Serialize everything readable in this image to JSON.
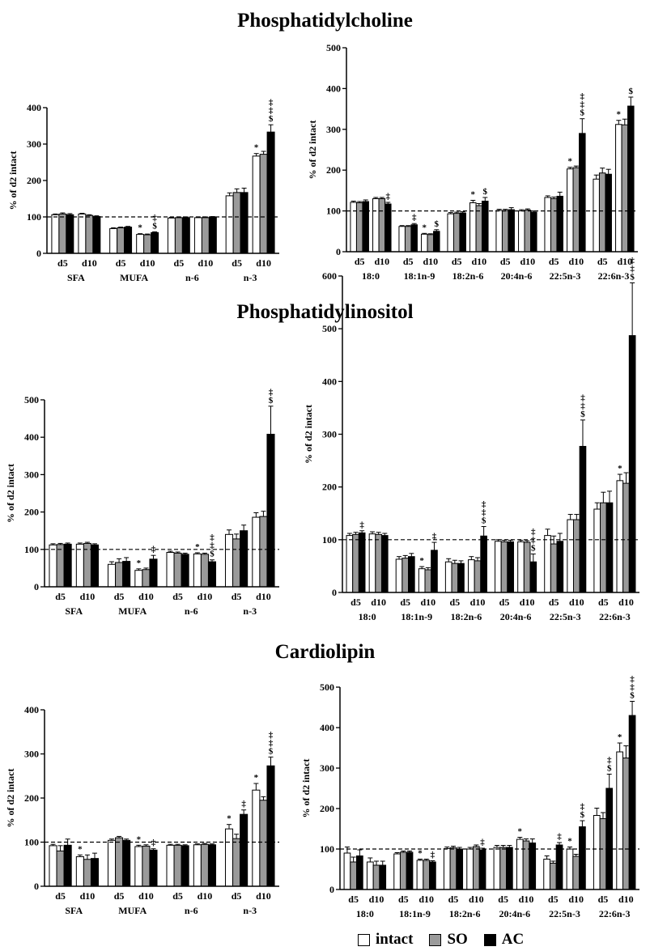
{
  "colors": {
    "intact": "#ffffff",
    "SO": "#9a9a9a",
    "AC": "#000000",
    "stroke": "#000000"
  },
  "sections": [
    {
      "title": "Phosphatidylcholine"
    },
    {
      "title": "Phosphatidylinositol"
    },
    {
      "title": "Cardiolipin"
    }
  ],
  "legend": [
    {
      "label": "intact",
      "color": "#ffffff"
    },
    {
      "label": "SO",
      "color": "#9a9a9a"
    },
    {
      "label": "AC",
      "color": "#000000"
    }
  ],
  "chart_data": [
    {
      "type": "bar",
      "section": "Phosphatidylcholine",
      "ylabel": "% of d2 intact",
      "ylim": [
        0,
        400
      ],
      "yticks": [
        0,
        100,
        200,
        300,
        400
      ],
      "reference_line": 100,
      "groups": [
        "SFA",
        "MUFA",
        "n-6",
        "n-3"
      ],
      "subgroups": [
        "d5",
        "d10"
      ],
      "series_names": [
        "intact",
        "SO",
        "AC"
      ],
      "values": [
        [
          [
            106,
            108,
            106
          ],
          [
            108,
            104,
            101
          ]
        ],
        [
          [
            68,
            70,
            72
          ],
          [
            52,
            51,
            57
          ]
        ],
        [
          [
            97,
            98,
            98
          ],
          [
            98,
            98,
            99
          ]
        ],
        [
          [
            158,
            167,
            167
          ],
          [
            267,
            272,
            333
          ]
        ]
      ],
      "errors": [
        [
          [
            2,
            3,
            3
          ],
          [
            2,
            2,
            2
          ]
        ],
        [
          [
            2,
            2,
            2
          ],
          [
            2,
            2,
            2
          ]
        ],
        [
          [
            2,
            2,
            2
          ],
          [
            2,
            2,
            2
          ]
        ],
        [
          [
            8,
            10,
            12
          ],
          [
            7,
            8,
            20
          ]
        ]
      ],
      "marks": [
        [
          [
            "",
            "",
            ""
          ],
          [
            "",
            "",
            ""
          ]
        ],
        [
          [
            "",
            "",
            ""
          ],
          [
            "*",
            "",
            "‡\n$"
          ]
        ],
        [
          [
            "",
            "",
            ""
          ],
          [
            "",
            "",
            ""
          ]
        ],
        [
          [
            "",
            "",
            ""
          ],
          [
            "*",
            "",
            "‡\n‡\n$"
          ]
        ]
      ]
    },
    {
      "type": "bar",
      "section": "Phosphatidylcholine",
      "ylabel": "% of d2 intact",
      "ylim": [
        0,
        500
      ],
      "yticks": [
        0,
        100,
        200,
        300,
        400,
        500
      ],
      "reference_line": 100,
      "groups": [
        "18:0",
        "18:1n-9",
        "18:2n-6",
        "20:4n-6",
        "22:5n-3",
        "22:6n-3"
      ],
      "subgroups": [
        "d5",
        "d10"
      ],
      "series_names": [
        "intact",
        "SO",
        "AC"
      ],
      "values": [
        [
          [
            121,
            120,
            123
          ],
          [
            130,
            130,
            117
          ]
        ],
        [
          [
            62,
            62,
            66
          ],
          [
            43,
            42,
            50
          ]
        ],
        [
          [
            93,
            94,
            95
          ],
          [
            120,
            113,
            124
          ]
        ],
        [
          [
            101,
            101,
            103
          ],
          [
            100,
            102,
            97
          ]
        ],
        [
          [
            133,
            130,
            136
          ],
          [
            203,
            206,
            290
          ]
        ],
        [
          [
            178,
            193,
            190
          ],
          [
            312,
            311,
            357
          ]
        ]
      ],
      "errors": [
        [
          [
            3,
            3,
            4
          ],
          [
            3,
            3,
            4
          ]
        ],
        [
          [
            2,
            2,
            3
          ],
          [
            2,
            2,
            4
          ]
        ],
        [
          [
            3,
            3,
            3
          ],
          [
            6,
            5,
            9
          ]
        ],
        [
          [
            3,
            3,
            5
          ],
          [
            3,
            3,
            3
          ]
        ],
        [
          [
            4,
            4,
            10
          ],
          [
            4,
            4,
            36
          ]
        ],
        [
          [
            10,
            12,
            12
          ],
          [
            10,
            14,
            22
          ]
        ]
      ],
      "marks": [
        [
          [
            "",
            "",
            ""
          ],
          [
            "",
            "",
            "‡"
          ]
        ],
        [
          [
            "",
            "",
            "‡"
          ],
          [
            "*",
            "",
            "$"
          ]
        ],
        [
          [
            "",
            "",
            ""
          ],
          [
            "*",
            "",
            "$"
          ]
        ],
        [
          [
            "",
            "",
            ""
          ],
          [
            "",
            "",
            ""
          ]
        ],
        [
          [
            "",
            "",
            ""
          ],
          [
            "*",
            "",
            "‡\n‡\n$"
          ]
        ],
        [
          [
            "",
            "",
            ""
          ],
          [
            "*",
            "",
            "$"
          ]
        ]
      ]
    },
    {
      "type": "bar",
      "section": "Phosphatidylinositol",
      "ylabel": "% of d2 intact",
      "ylim": [
        0,
        500
      ],
      "yticks": [
        0,
        100,
        200,
        300,
        400,
        500
      ],
      "reference_line": 100,
      "groups": [
        "SFA",
        "MUFA",
        "n-6",
        "n-3"
      ],
      "subgroups": [
        "d5",
        "d10"
      ],
      "series_names": [
        "intact",
        "SO",
        "AC"
      ],
      "values": [
        [
          [
            112,
            113,
            114
          ],
          [
            114,
            116,
            112
          ]
        ],
        [
          [
            60,
            65,
            68
          ],
          [
            44,
            46,
            74
          ]
        ],
        [
          [
            92,
            90,
            87
          ],
          [
            88,
            87,
            67
          ]
        ],
        [
          [
            140,
            128,
            150
          ],
          [
            186,
            188,
            408
          ]
        ]
      ],
      "errors": [
        [
          [
            3,
            3,
            3
          ],
          [
            3,
            3,
            3
          ]
        ],
        [
          [
            7,
            10,
            10
          ],
          [
            4,
            4,
            10
          ]
        ],
        [
          [
            3,
            3,
            3
          ],
          [
            3,
            3,
            5
          ]
        ],
        [
          [
            12,
            13,
            15
          ],
          [
            12,
            14,
            75
          ]
        ]
      ],
      "marks": [
        [
          [
            "",
            "",
            ""
          ],
          [
            "",
            "",
            ""
          ]
        ],
        [
          [
            "",
            "",
            ""
          ],
          [
            "*",
            "",
            "‡"
          ]
        ],
        [
          [
            "",
            "",
            ""
          ],
          [
            "*",
            "",
            "‡\n‡\n$"
          ]
        ],
        [
          [
            "",
            "",
            ""
          ],
          [
            "",
            "",
            "‡\n$"
          ]
        ]
      ]
    },
    {
      "type": "bar",
      "section": "Phosphatidylinositol",
      "ylabel": "% of d2 intact",
      "ylim": [
        0,
        600
      ],
      "yticks": [
        0,
        100,
        200,
        300,
        400,
        500,
        600
      ],
      "reference_line": 100,
      "groups": [
        "18:0",
        "18:1n-9",
        "18:2n-6",
        "20:4n-6",
        "22:5n-3",
        "22:6n-3"
      ],
      "subgroups": [
        "d5",
        "d10"
      ],
      "series_names": [
        "intact",
        "SO",
        "AC"
      ],
      "values": [
        [
          [
            108,
            110,
            113
          ],
          [
            111,
            110,
            108
          ]
        ],
        [
          [
            63,
            65,
            68
          ],
          [
            45,
            43,
            80
          ]
        ],
        [
          [
            58,
            55,
            55
          ],
          [
            62,
            60,
            107
          ]
        ],
        [
          [
            97,
            96,
            96
          ],
          [
            96,
            95,
            58
          ]
        ],
        [
          [
            108,
            92,
            97
          ],
          [
            138,
            138,
            277
          ]
        ],
        [
          [
            158,
            170,
            170
          ],
          [
            212,
            207,
            487
          ]
        ]
      ],
      "errors": [
        [
          [
            4,
            4,
            4
          ],
          [
            4,
            4,
            4
          ]
        ],
        [
          [
            5,
            5,
            6
          ],
          [
            4,
            4,
            15
          ]
        ],
        [
          [
            6,
            6,
            5
          ],
          [
            6,
            6,
            18
          ]
        ],
        [
          [
            3,
            3,
            3
          ],
          [
            3,
            3,
            15
          ]
        ],
        [
          [
            12,
            15,
            15
          ],
          [
            10,
            10,
            50
          ]
        ],
        [
          [
            12,
            20,
            22
          ],
          [
            12,
            20,
            100
          ]
        ]
      ],
      "marks": [
        [
          [
            "",
            "",
            "‡"
          ],
          [
            "",
            "",
            ""
          ]
        ],
        [
          [
            "",
            "",
            ""
          ],
          [
            "*",
            "",
            "‡"
          ]
        ],
        [
          [
            "",
            "",
            ""
          ],
          [
            "",
            "",
            "‡\n‡\n$"
          ]
        ],
        [
          [
            "",
            "",
            ""
          ],
          [
            "",
            "",
            "‡\n‡\n$"
          ]
        ],
        [
          [
            "",
            "",
            ""
          ],
          [
            "",
            "",
            "‡\n‡\n$"
          ]
        ],
        [
          [
            "",
            "",
            ""
          ],
          [
            "*",
            "",
            "‡\n‡\n$"
          ]
        ]
      ]
    },
    {
      "type": "bar",
      "section": "Cardiolipin",
      "ylabel": "% of d2 intact",
      "ylim": [
        0,
        400
      ],
      "yticks": [
        0,
        100,
        200,
        300,
        400
      ],
      "reference_line": 100,
      "groups": [
        "SFA",
        "MUFA",
        "n-6",
        "n-3"
      ],
      "subgroups": [
        "d5",
        "d10"
      ],
      "series_names": [
        "intact",
        "SO",
        "AC"
      ],
      "values": [
        [
          [
            92,
            80,
            93
          ],
          [
            67,
            61,
            63
          ]
        ],
        [
          [
            104,
            110,
            104
          ],
          [
            90,
            91,
            82
          ]
        ],
        [
          [
            93,
            93,
            92
          ],
          [
            94,
            95,
            94
          ]
        ],
        [
          [
            130,
            108,
            163
          ],
          [
            218,
            195,
            273
          ]
        ]
      ],
      "errors": [
        [
          [
            3,
            12,
            14
          ],
          [
            4,
            10,
            12
          ]
        ],
        [
          [
            3,
            3,
            3
          ],
          [
            3,
            3,
            3
          ]
        ],
        [
          [
            2,
            2,
            2
          ],
          [
            2,
            2,
            2
          ]
        ],
        [
          [
            10,
            10,
            10
          ],
          [
            15,
            8,
            20
          ]
        ]
      ],
      "marks": [
        [
          [
            "",
            "",
            ""
          ],
          [
            "*",
            "",
            ""
          ]
        ],
        [
          [
            "",
            "",
            ""
          ],
          [
            "*",
            "",
            "‡"
          ]
        ],
        [
          [
            "",
            "",
            ""
          ],
          [
            "",
            "",
            ""
          ]
        ],
        [
          [
            "*",
            "",
            "‡"
          ],
          [
            "*",
            "",
            "‡\n‡\n$"
          ]
        ]
      ]
    },
    {
      "type": "bar",
      "section": "Cardiolipin",
      "ylabel": "% of d2 intact",
      "ylim": [
        0,
        500
      ],
      "yticks": [
        0,
        100,
        200,
        300,
        400,
        500
      ],
      "reference_line": 100,
      "groups": [
        "18:0",
        "18:1n-9",
        "18:2n-6",
        "20:4n-6",
        "22:5n-3",
        "22:6n-3"
      ],
      "subgroups": [
        "d5",
        "d10"
      ],
      "series_names": [
        "intact",
        "SO",
        "AC"
      ],
      "values": [
        [
          [
            90,
            68,
            83
          ],
          [
            68,
            60,
            60
          ]
        ],
        [
          [
            88,
            92,
            92
          ],
          [
            72,
            72,
            68
          ]
        ],
        [
          [
            101,
            103,
            100
          ],
          [
            100,
            106,
            98
          ]
        ],
        [
          [
            104,
            104,
            104
          ],
          [
            124,
            120,
            115
          ]
        ],
        [
          [
            75,
            65,
            110
          ],
          [
            100,
            82,
            155
          ]
        ],
        [
          [
            183,
            175,
            250
          ],
          [
            340,
            325,
            430
          ]
        ]
      ],
      "errors": [
        [
          [
            15,
            12,
            15
          ],
          [
            10,
            10,
            10
          ]
        ],
        [
          [
            3,
            3,
            3
          ],
          [
            3,
            3,
            3
          ]
        ],
        [
          [
            4,
            4,
            4
          ],
          [
            4,
            4,
            4
          ]
        ],
        [
          [
            5,
            5,
            5
          ],
          [
            5,
            5,
            10
          ]
        ],
        [
          [
            8,
            5,
            6
          ],
          [
            5,
            5,
            15
          ]
        ],
        [
          [
            18,
            15,
            35
          ],
          [
            22,
            30,
            35
          ]
        ]
      ],
      "marks": [
        [
          [
            "",
            "",
            ""
          ],
          [
            "",
            "",
            ""
          ]
        ],
        [
          [
            "",
            "",
            ""
          ],
          [
            "*",
            "",
            "‡"
          ]
        ],
        [
          [
            "",
            "",
            ""
          ],
          [
            "",
            "",
            "‡"
          ]
        ],
        [
          [
            "",
            "",
            ""
          ],
          [
            "*",
            "",
            ""
          ]
        ],
        [
          [
            "",
            "",
            "‡"
          ],
          [
            "*",
            "",
            "‡\n$"
          ]
        ],
        [
          [
            "",
            "",
            "‡\n$"
          ],
          [
            "*",
            "",
            "‡\n‡\n$"
          ]
        ]
      ]
    }
  ]
}
